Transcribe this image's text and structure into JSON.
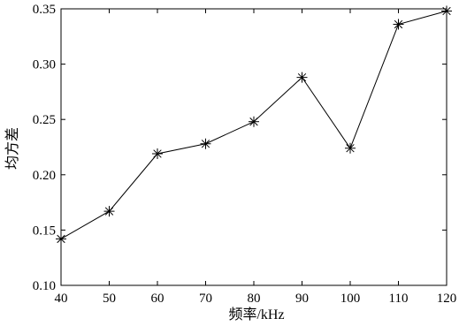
{
  "chart_data": {
    "type": "line",
    "title": "",
    "xlabel": "频率/kHz",
    "ylabel": "均方差",
    "x": [
      40,
      50,
      60,
      70,
      80,
      90,
      100,
      110,
      120
    ],
    "series": [
      {
        "values": [
          0.142,
          0.167,
          0.219,
          0.228,
          0.248,
          0.288,
          0.224,
          0.336,
          0.348
        ]
      }
    ],
    "xlim": [
      40,
      120
    ],
    "ylim": [
      0.1,
      0.35
    ],
    "xticks": [
      40,
      50,
      60,
      70,
      80,
      90,
      100,
      110,
      120
    ],
    "yticks": [
      0.1,
      0.15,
      0.2,
      0.25,
      0.3,
      0.35
    ],
    "xtick_labels": [
      "40",
      "50",
      "60",
      "70",
      "80",
      "90",
      "100",
      "110",
      "120"
    ],
    "ytick_labels": [
      "0.10",
      "0.15",
      "0.20",
      "0.25",
      "0.30",
      "0.35"
    ],
    "marker": "asterisk",
    "line_color": "#000000",
    "grid": false,
    "legend": "none"
  }
}
